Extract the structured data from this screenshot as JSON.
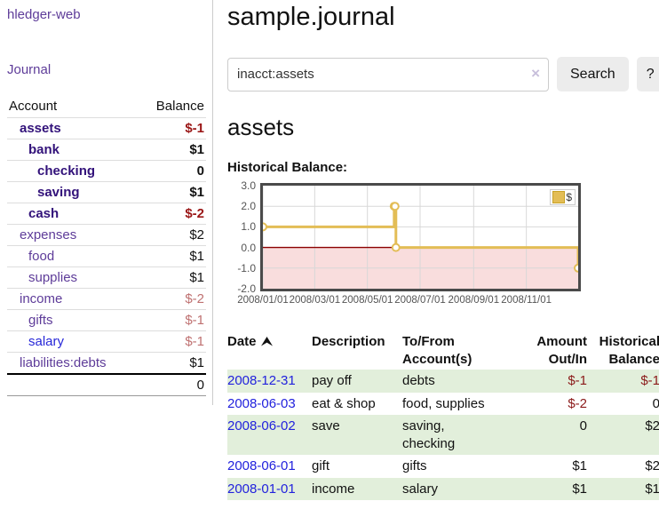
{
  "sidebar": {
    "brand": "hledger-web",
    "journal_link": "Journal",
    "accounts_table": {
      "headers": [
        "Account",
        "Balance"
      ],
      "rows": [
        {
          "name": "assets",
          "depth": 1,
          "bold": true,
          "cls": "",
          "balance": "$-1",
          "balcls": "neg"
        },
        {
          "name": "bank",
          "depth": 2,
          "bold": true,
          "cls": "",
          "balance": "$1",
          "balcls": ""
        },
        {
          "name": "checking",
          "depth": 3,
          "bold": true,
          "cls": "",
          "balance": "0",
          "balcls": ""
        },
        {
          "name": "saving",
          "depth": 3,
          "bold": true,
          "cls": "",
          "balance": "$1",
          "balcls": ""
        },
        {
          "name": "cash",
          "depth": 2,
          "bold": true,
          "cls": "",
          "balance": "$-2",
          "balcls": "neg"
        },
        {
          "name": "expenses",
          "depth": 1,
          "bold": false,
          "cls": "",
          "balance": "$2",
          "balcls": ""
        },
        {
          "name": "food",
          "depth": 2,
          "bold": false,
          "cls": "",
          "balance": "$1",
          "balcls": ""
        },
        {
          "name": "supplies",
          "depth": 2,
          "bold": false,
          "cls": "",
          "balance": "$1",
          "balcls": ""
        },
        {
          "name": "income",
          "depth": 1,
          "bold": false,
          "cls": "",
          "balance": "$-2",
          "balcls": "rose"
        },
        {
          "name": "gifts",
          "depth": 2,
          "bold": false,
          "cls": "",
          "balance": "$-1",
          "balcls": "rose"
        },
        {
          "name": "salary",
          "depth": 2,
          "bold": false,
          "cls": "blue",
          "balance": "$-1",
          "balcls": "rose"
        },
        {
          "name": "liabilities:debts",
          "depth": 1,
          "bold": false,
          "cls": "",
          "balance": "$1",
          "balcls": ""
        }
      ],
      "total": "0"
    }
  },
  "main": {
    "title": "sample.journal",
    "search": {
      "value": "inacct:assets",
      "clear_icon": "×",
      "search_label": "Search",
      "help_label": "?"
    },
    "account_heading": "assets",
    "chart_label": "Historical Balance:"
  },
  "chart_data": {
    "type": "line",
    "title": "Historical Balance",
    "step": true,
    "xlim": [
      0,
      365
    ],
    "ylim": [
      -2,
      3
    ],
    "yticks": [
      3.0,
      2.0,
      1.0,
      0.0,
      -1.0,
      -2.0
    ],
    "xticks": [
      {
        "x": 0,
        "label": "2008/01/01"
      },
      {
        "x": 60,
        "label": "2008/03/01"
      },
      {
        "x": 121,
        "label": "2008/05/01"
      },
      {
        "x": 182,
        "label": "2008/07/01"
      },
      {
        "x": 244,
        "label": "2008/09/01"
      },
      {
        "x": 305,
        "label": "2008/11/01"
      }
    ],
    "series": [
      {
        "name": "$",
        "points": [
          {
            "date": "2008-01-01",
            "x": 0,
            "y": 1
          },
          {
            "date": "2008-06-01",
            "x": 152,
            "y": 2
          },
          {
            "date": "2008-06-02",
            "x": 153,
            "y": 2
          },
          {
            "date": "2008-06-03",
            "x": 154,
            "y": 0
          },
          {
            "date": "2008-12-31",
            "x": 365,
            "y": -1
          }
        ]
      }
    ],
    "legend": {
      "label": "$",
      "position": "top-right"
    },
    "colors": {
      "line": "#e3bd56",
      "point_fill": "#ffffff",
      "negative_fill": "#f9dddd",
      "zero_line": "#8b0000",
      "grid": "#d8d8d8",
      "frame": "#4a4a4a"
    }
  },
  "transactions": {
    "headers": [
      "Date",
      "Description",
      "To/From Account(s)",
      "Amount Out/In",
      "Historical Balance"
    ],
    "rows": [
      {
        "date": "2008-12-31",
        "description": "pay off",
        "accounts": [
          "debts"
        ],
        "amount": "$-1",
        "balance": "$-1",
        "highlight": true
      },
      {
        "date": "2008-06-03",
        "description": "eat & shop",
        "accounts": [
          "food, supplies"
        ],
        "amount": "$-2",
        "balance": "0",
        "highlight": false
      },
      {
        "date": "2008-06-02",
        "description": "save",
        "accounts": [
          "saving,",
          "checking"
        ],
        "amount": "0",
        "balance": "$2",
        "highlight": true
      },
      {
        "date": "2008-06-01",
        "description": "gift",
        "accounts": [
          "gifts"
        ],
        "amount": "$1",
        "balance": "$2",
        "highlight": false
      },
      {
        "date": "2008-01-01",
        "description": "income",
        "accounts": [
          "salary"
        ],
        "amount": "$1",
        "balance": "$1",
        "highlight": true
      }
    ]
  }
}
